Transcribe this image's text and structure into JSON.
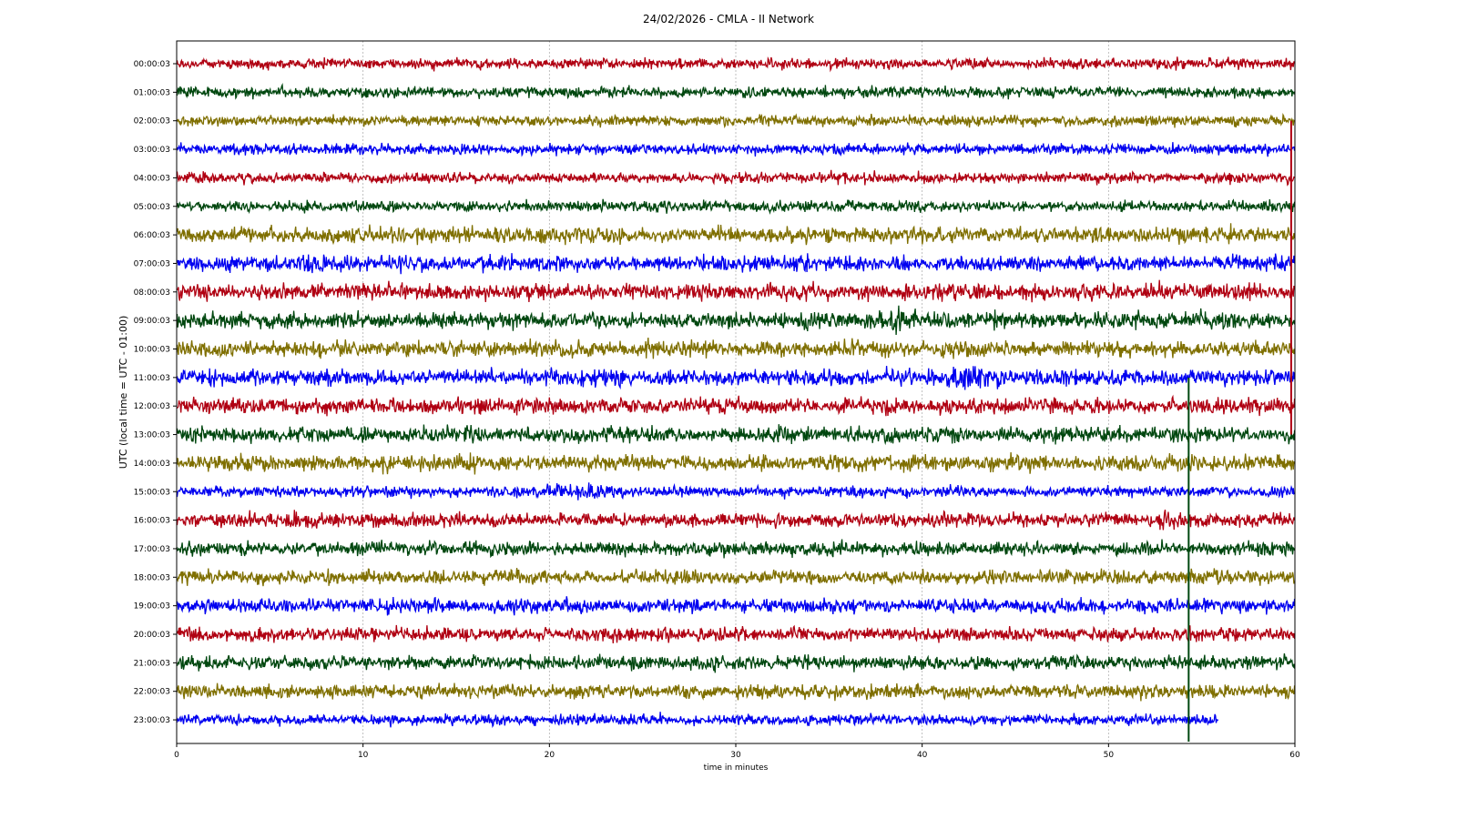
{
  "chart_data": {
    "type": "line",
    "title": "24/02/2026 - CMLA - II Network",
    "xlabel": "time in minutes",
    "ylabel": "UTC (local time = UTC - 01:00)",
    "xlim": [
      0,
      60
    ],
    "x_ticks": [
      "0",
      "10",
      "20",
      "30",
      "40",
      "50",
      "60"
    ],
    "grid": true,
    "legend": "none",
    "series_colors": [
      "#b00012",
      "#00470f",
      "#7f6f00",
      "#0000f0"
    ],
    "rows": [
      {
        "name": "00:00:03",
        "end_minute": 60
      },
      {
        "name": "01:00:03",
        "end_minute": 60
      },
      {
        "name": "02:00:03",
        "end_minute": 60
      },
      {
        "name": "03:00:03",
        "end_minute": 60
      },
      {
        "name": "04:00:03",
        "end_minute": 60
      },
      {
        "name": "05:00:03",
        "end_minute": 60
      },
      {
        "name": "06:00:03",
        "end_minute": 60
      },
      {
        "name": "07:00:03",
        "end_minute": 60
      },
      {
        "name": "08:00:03",
        "end_minute": 60
      },
      {
        "name": "09:00:03",
        "end_minute": 60
      },
      {
        "name": "10:00:03",
        "end_minute": 60
      },
      {
        "name": "11:00:03",
        "end_minute": 60
      },
      {
        "name": "12:00:03",
        "end_minute": 60
      },
      {
        "name": "13:00:03",
        "end_minute": 60
      },
      {
        "name": "14:00:03",
        "end_minute": 60
      },
      {
        "name": "15:00:03",
        "end_minute": 60
      },
      {
        "name": "16:00:03",
        "end_minute": 60
      },
      {
        "name": "17:00:03",
        "end_minute": 60
      },
      {
        "name": "18:00:03",
        "end_minute": 60
      },
      {
        "name": "19:00:03",
        "end_minute": 60
      },
      {
        "name": "20:00:03",
        "end_minute": 60
      },
      {
        "name": "21:00:03",
        "end_minute": 60
      },
      {
        "name": "22:00:03",
        "end_minute": 60
      },
      {
        "name": "23:00:03",
        "end_minute": 55.9
      }
    ]
  }
}
